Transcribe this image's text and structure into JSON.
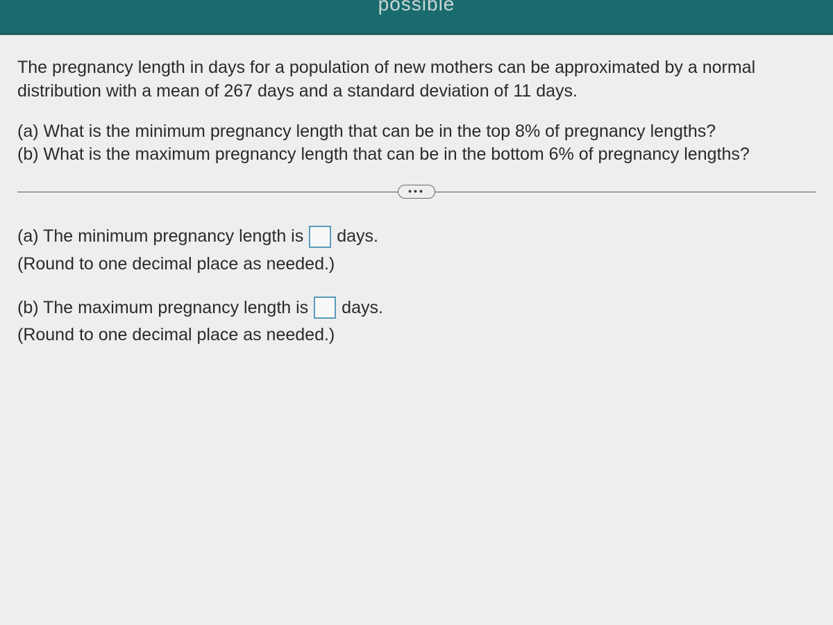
{
  "header": {
    "partial_text": "possible"
  },
  "problem": {
    "intro": "The pregnancy length in days for a population of new mothers can be approximated by a normal distribution with a mean of 267 days and a standard deviation of 11 days.",
    "question_a": "(a) What is the minimum pregnancy length that can be in the top 8% of pregnancy lengths?",
    "question_b": "(b) What is the maximum pregnancy length that can be in the bottom 6% of pregnancy lengths?"
  },
  "divider": {
    "ellipsis": "•••"
  },
  "answers": {
    "a": {
      "prefix": "(a) The minimum pregnancy length is",
      "suffix": "days.",
      "value": "",
      "round_note": "(Round to one decimal place as needed.)"
    },
    "b": {
      "prefix": "(b) The maximum pregnancy length is",
      "suffix": "days.",
      "value": "",
      "round_note": "(Round to one decimal place as needed.)"
    }
  },
  "styling": {
    "header_bg": "#1a6b6e",
    "panel_bg": "#edeef0",
    "body_bg": "#c8cbce",
    "text_color": "#2a2a2a",
    "input_border": "#5a9bb8",
    "font_size_main": 25,
    "input_box_size": 32
  }
}
